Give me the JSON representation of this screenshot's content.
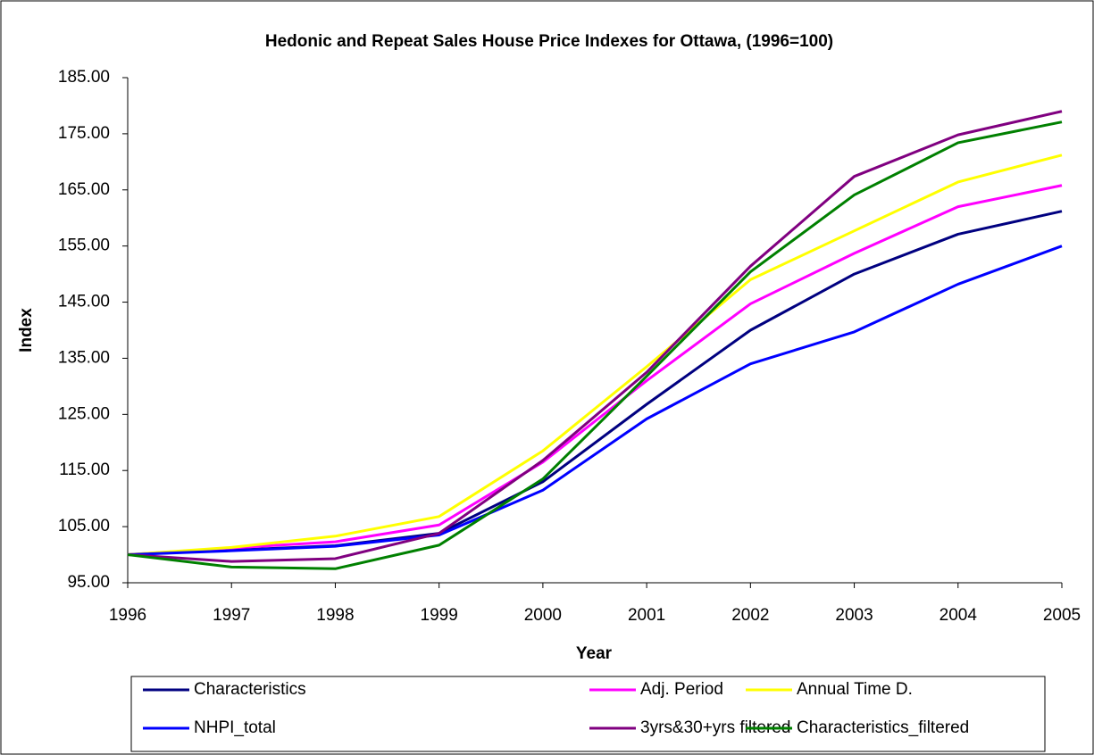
{
  "chart_data": {
    "type": "line",
    "title": "Hedonic and Repeat Sales House Price Indexes for Ottawa, (1996=100)",
    "x_label": "Year",
    "y_label": "Index",
    "x": [
      1996,
      1997,
      1998,
      1999,
      2000,
      2001,
      2002,
      2003,
      2004,
      2005
    ],
    "xlim": [
      1996,
      2005
    ],
    "xticks": [
      1996,
      1997,
      1998,
      1999,
      2000,
      2001,
      2002,
      2003,
      2004,
      2005
    ],
    "ylim": [
      95,
      185
    ],
    "yticks": [
      {
        "value": 95,
        "label": "95.00"
      },
      {
        "value": 105,
        "label": "105.00"
      },
      {
        "value": 115,
        "label": "115.00"
      },
      {
        "value": 125,
        "label": "125.00"
      },
      {
        "value": 135,
        "label": "135.00"
      },
      {
        "value": 145,
        "label": "145.00"
      },
      {
        "value": 155,
        "label": "155.00"
      },
      {
        "value": 165,
        "label": "165.00"
      },
      {
        "value": 175,
        "label": "175.00"
      },
      {
        "value": 185,
        "label": "185.00"
      }
    ],
    "grid": false,
    "legend": "bottom",
    "series": [
      {
        "name": "Characteristics",
        "color": "#000080",
        "values": [
          100,
          100.8,
          101.6,
          103.8,
          113,
          126.8,
          140,
          150,
          157.1,
          161.2
        ]
      },
      {
        "name": "Adj. Period",
        "color": "#ff00ff",
        "values": [
          100,
          101.2,
          102.3,
          105.3,
          116.5,
          131,
          144.7,
          153.7,
          162,
          165.8
        ]
      },
      {
        "name": "Annual Time D.",
        "color": "#ffff00",
        "values": [
          100,
          101.3,
          103.3,
          106.8,
          118.5,
          133.5,
          149,
          157.7,
          166.4,
          171.2
        ]
      },
      {
        "name": "NHPI_total",
        "color": "#0000ff",
        "values": [
          100,
          100.7,
          101.5,
          103.5,
          111.5,
          124.2,
          134,
          139.7,
          148.2,
          155
        ]
      },
      {
        "name": "3yrs&30+yrs filtered",
        "color": "#800080",
        "values": [
          100,
          98.8,
          99.3,
          103.8,
          116.8,
          132.5,
          151.4,
          167.4,
          174.8,
          179
        ]
      },
      {
        "name": "Characteristics_filtered",
        "color": "#008000",
        "values": [
          100,
          97.8,
          97.5,
          101.7,
          113.5,
          131.8,
          150.4,
          164.1,
          173.4,
          177.1
        ]
      }
    ]
  }
}
